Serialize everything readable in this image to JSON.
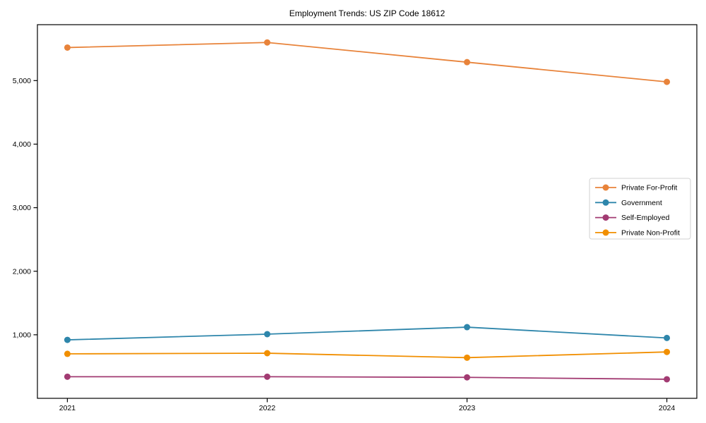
{
  "chart_data": {
    "type": "line",
    "title": "Employment Trends: US ZIP Code 18612",
    "xlabel": "",
    "ylabel": "",
    "x_categories": [
      "2021",
      "2022",
      "2023",
      "2024"
    ],
    "x_numeric": [
      2021,
      2022,
      2023,
      2024
    ],
    "series": [
      {
        "name": "Private For-Profit",
        "color": "#E8833A",
        "values": [
          5520,
          5600,
          5290,
          4980
        ]
      },
      {
        "name": "Government",
        "color": "#2E86AB",
        "values": [
          920,
          1010,
          1120,
          950
        ]
      },
      {
        "name": "Self-Employed",
        "color": "#A23B72",
        "values": [
          340,
          340,
          330,
          300
        ]
      },
      {
        "name": "Private Non-Profit",
        "color": "#F18F01",
        "values": [
          700,
          710,
          640,
          730
        ]
      }
    ],
    "y_ticks": [
      1000,
      2000,
      3000,
      4000,
      5000
    ],
    "y_tick_labels": [
      "1,000",
      "2,000",
      "3,000",
      "4,000",
      "5,000"
    ],
    "ylim": [
      0,
      5880
    ],
    "xlim": [
      2020.85,
      2024.15
    ],
    "grid": false,
    "legend": {
      "position": "center-right",
      "entries": [
        "Private For-Profit",
        "Government",
        "Self-Employed",
        "Private Non-Profit"
      ],
      "border_color": "#d2d2d2",
      "background": "#ffffff"
    },
    "marker": "circle",
    "frame_color": "#000000",
    "background_color": "#ffffff"
  }
}
